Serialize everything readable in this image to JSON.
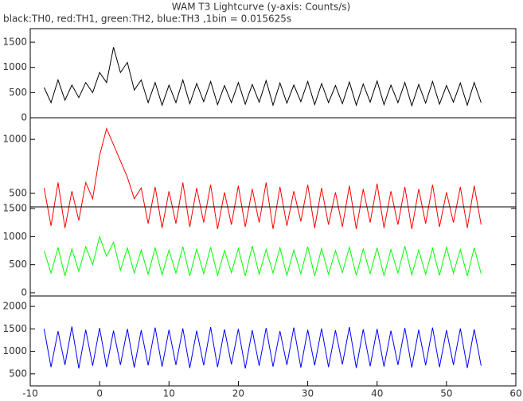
{
  "chart_data": [
    {
      "type": "line",
      "title": "WAM T3 Lightcurve (y-axis: Counts/s)",
      "subtitle": "black:TH0, red:TH1, green:TH2, blue:TH3 ,1bin = 0.015625s",
      "x": [
        -8,
        -7,
        -6,
        -5,
        -4,
        -3,
        -2,
        -1,
        0,
        1,
        2,
        3,
        4,
        5,
        6,
        7,
        8,
        9,
        10,
        11,
        12,
        13,
        14,
        15,
        16,
        17,
        18,
        19,
        20,
        21,
        22,
        23,
        24,
        25,
        26,
        27,
        28,
        29,
        30,
        31,
        32,
        33,
        34,
        35,
        36,
        37,
        38,
        39,
        40,
        41,
        42,
        43,
        44,
        45,
        46,
        47,
        48,
        49,
        50,
        51,
        52,
        53,
        54,
        55
      ],
      "series": [
        {
          "name": "TH0",
          "color": "#000000",
          "values": [
            600,
            300,
            750,
            350,
            650,
            400,
            700,
            500,
            900,
            700,
            1400,
            900,
            1100,
            550,
            750,
            300,
            700,
            250,
            650,
            300,
            750,
            280,
            680,
            320,
            720,
            260,
            640,
            300,
            700,
            270,
            660,
            310,
            740,
            250,
            690,
            290,
            650,
            320,
            720,
            260,
            680,
            300,
            640,
            280,
            710,
            250,
            670,
            310,
            730,
            260,
            650,
            300,
            700,
            240,
            660,
            290,
            720,
            270,
            640,
            310,
            690,
            250,
            700,
            300
          ]
        }
      ],
      "xlim": [
        -10,
        60
      ],
      "ylim": [
        0,
        1770
      ],
      "yticks": [
        0,
        500,
        1000,
        1500
      ]
    },
    {
      "type": "line",
      "x": [
        -8,
        -7,
        -6,
        -5,
        -4,
        -3,
        -2,
        -1,
        0,
        1,
        2,
        3,
        4,
        5,
        6,
        7,
        8,
        9,
        10,
        11,
        12,
        13,
        14,
        15,
        16,
        17,
        18,
        19,
        20,
        21,
        22,
        23,
        24,
        25,
        26,
        27,
        28,
        29,
        30,
        31,
        32,
        33,
        34,
        35,
        36,
        37,
        38,
        39,
        40,
        41,
        42,
        43,
        44,
        45,
        46,
        47,
        48,
        49,
        50,
        51,
        52,
        53,
        54,
        55
      ],
      "series": [
        {
          "name": "TH1",
          "color": "#ff0000",
          "values": [
            550,
            200,
            600,
            180,
            520,
            250,
            600,
            450,
            850,
            1100,
            950,
            800,
            650,
            450,
            550,
            220,
            560,
            180,
            520,
            220,
            600,
            190,
            550,
            230,
            580,
            170,
            510,
            210,
            570,
            190,
            540,
            230,
            600,
            170,
            560,
            200,
            520,
            240,
            580,
            180,
            550,
            210,
            510,
            190,
            570,
            170,
            540,
            230,
            590,
            180,
            520,
            210,
            560,
            170,
            540,
            220,
            580,
            190,
            510,
            230,
            560,
            180,
            570,
            210
          ]
        }
      ],
      "xlim": [
        -10,
        60
      ],
      "ylim": [
        375,
        1200
      ],
      "yticks": [
        500,
        1000
      ]
    },
    {
      "type": "line",
      "x": [
        -8,
        -7,
        -6,
        -5,
        -4,
        -3,
        -2,
        -1,
        0,
        1,
        2,
        3,
        4,
        5,
        6,
        7,
        8,
        9,
        10,
        11,
        12,
        13,
        14,
        15,
        16,
        17,
        18,
        19,
        20,
        21,
        22,
        23,
        24,
        25,
        26,
        27,
        28,
        29,
        30,
        31,
        32,
        33,
        34,
        35,
        36,
        37,
        38,
        39,
        40,
        41,
        42,
        43,
        44,
        45,
        46,
        47,
        48,
        49,
        50,
        51,
        52,
        53,
        54,
        55
      ],
      "series": [
        {
          "name": "TH2",
          "color": "#00ff00",
          "values": [
            750,
            350,
            800,
            300,
            780,
            380,
            820,
            500,
            1000,
            650,
            900,
            400,
            800,
            350,
            760,
            330,
            800,
            320,
            760,
            350,
            820,
            300,
            780,
            340,
            810,
            310,
            750,
            360,
            790,
            300,
            830,
            330,
            770,
            350,
            800,
            310,
            760,
            340,
            820,
            300,
            790,
            330,
            750,
            360,
            810,
            310,
            780,
            340,
            800,
            300,
            770,
            350,
            830,
            320,
            760,
            330,
            790,
            310,
            810,
            350,
            770,
            300,
            800,
            340
          ]
        }
      ],
      "xlim": [
        -10,
        60
      ],
      "ylim": [
        -57,
        1530
      ],
      "yticks": [
        0,
        500,
        1000,
        1500
      ]
    },
    {
      "type": "line",
      "x": [
        -8,
        -7,
        -6,
        -5,
        -4,
        -3,
        -2,
        -1,
        0,
        1,
        2,
        3,
        4,
        5,
        6,
        7,
        8,
        9,
        10,
        11,
        12,
        13,
        14,
        15,
        16,
        17,
        18,
        19,
        20,
        21,
        22,
        23,
        24,
        25,
        26,
        27,
        28,
        29,
        30,
        31,
        32,
        33,
        34,
        35,
        36,
        37,
        38,
        39,
        40,
        41,
        42,
        43,
        44,
        45,
        46,
        47,
        48,
        49,
        50,
        51,
        52,
        53,
        54,
        55
      ],
      "series": [
        {
          "name": "TH3",
          "color": "#0000ff",
          "values": [
            1500,
            650,
            1450,
            700,
            1550,
            620,
            1480,
            680,
            1520,
            650,
            1460,
            700,
            1500,
            640,
            1470,
            690,
            1530,
            660,
            1480,
            700,
            1510,
            630,
            1460,
            690,
            1540,
            650,
            1490,
            710,
            1500,
            620,
            1470,
            680,
            1520,
            660,
            1450,
            700,
            1530,
            640,
            1480,
            690,
            1510,
            650,
            1470,
            710,
            1540,
            630,
            1490,
            670,
            1500,
            660,
            1460,
            700,
            1520,
            640,
            1480,
            690,
            1530,
            650,
            1470,
            700,
            1510,
            630,
            1490,
            680
          ]
        }
      ],
      "xlim": [
        -10,
        60
      ],
      "ylim": [
        232,
        2232
      ],
      "yticks": [
        500,
        1000,
        1500,
        2000
      ],
      "xticks": [
        -10,
        0,
        10,
        20,
        30,
        40,
        50,
        60
      ]
    }
  ]
}
